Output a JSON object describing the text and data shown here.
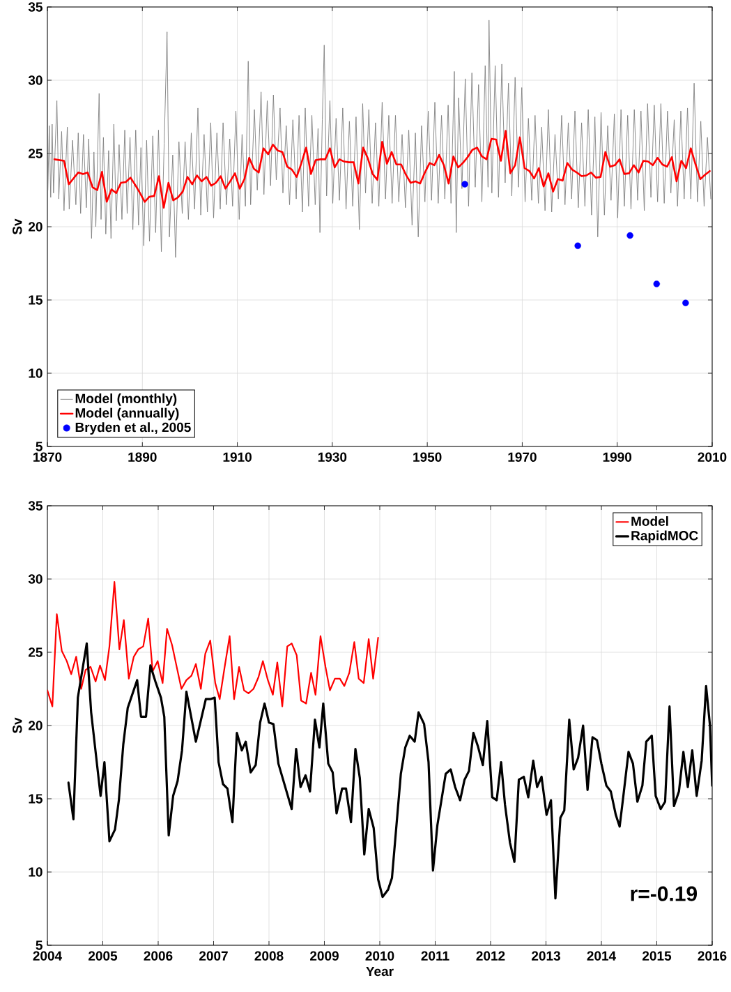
{
  "chart_data": [
    {
      "type": "line",
      "ylabel": "Sv",
      "xlim": [
        1870,
        2010
      ],
      "xticks": [
        1870,
        1890,
        1910,
        1930,
        1950,
        1970,
        1990,
        2010
      ],
      "ylim": [
        5,
        35
      ],
      "yticks": [
        5,
        10,
        15,
        20,
        25,
        30,
        35
      ],
      "grid": true,
      "legend": "bottom left",
      "series": [
        {
          "name": "Model (monthly)",
          "color": "#808080",
          "x": [
            1870.1,
            1870.4,
            1870.7,
            1871.0,
            1871.3,
            1872.0,
            1872.4,
            1873.0,
            1873.5,
            1874.2,
            1874.6,
            1875.3,
            1876.0,
            1876.5,
            1877.0,
            1877.6,
            1878.2,
            1878.7,
            1879.3,
            1879.8,
            1880.2,
            1880.9,
            1881.3,
            1881.8,
            1882.3,
            1882.9,
            1883.4,
            1884.0,
            1884.5,
            1885.1,
            1885.7,
            1886.3,
            1886.8,
            1887.4,
            1888.0,
            1888.6,
            1889.2,
            1889.7,
            1890.3,
            1890.9,
            1891.5,
            1892.2,
            1892.8,
            1893.4,
            1894.0,
            1894.6,
            1895.2,
            1895.7,
            1896.4,
            1897.0,
            1897.7,
            1898.4,
            1899.0,
            1899.7,
            1900.3,
            1901.0,
            1901.7,
            1902.3,
            1903.0,
            1903.7,
            1904.4,
            1905.0,
            1905.7,
            1906.4,
            1907.0,
            1907.7,
            1908.4,
            1909.0,
            1909.7,
            1910.4,
            1911.0,
            1911.7,
            1912.3,
            1912.8,
            1913.6,
            1914.2,
            1915.0,
            1915.6,
            1916.3,
            1917.0,
            1917.6,
            1918.2,
            1919.0,
            1919.6,
            1920.3,
            1921.0,
            1921.7,
            1922.4,
            1923.0,
            1923.7,
            1924.3,
            1925.0,
            1925.7,
            1926.4,
            1927.0,
            1927.4,
            1927.9,
            1928.3,
            1928.8,
            1929.5,
            1930.1,
            1930.8,
            1931.5,
            1932.2,
            1932.9,
            1933.6,
            1934.3,
            1935.0,
            1935.7,
            1936.4,
            1937.0,
            1937.7,
            1938.4,
            1939.1,
            1939.8,
            1940.5,
            1941.2,
            1941.9,
            1942.6,
            1943.3,
            1944.0,
            1944.7,
            1945.4,
            1946.1,
            1946.8,
            1947.5,
            1948.1,
            1948.8,
            1949.5,
            1950.2,
            1950.9,
            1951.6,
            1952.3,
            1953.0,
            1953.7,
            1954.4,
            1955.0,
            1955.7,
            1956.1,
            1956.6,
            1957.3,
            1958.0,
            1958.7,
            1959.4,
            1960.1,
            1960.8,
            1961.5,
            1962.2,
            1962.8,
            1963.0,
            1963.6,
            1964.3,
            1965.0,
            1965.7,
            1966.4,
            1967.1,
            1967.8,
            1968.5,
            1969.2,
            1969.9,
            1970.6,
            1971.3,
            1972.0,
            1972.7,
            1973.4,
            1974.1,
            1974.8,
            1975.5,
            1976.2,
            1976.9,
            1977.6,
            1978.3,
            1979.0,
            1979.7,
            1980.4,
            1981.1,
            1981.8,
            1982.5,
            1983.2,
            1983.9,
            1984.6,
            1985.3,
            1985.9,
            1986.6,
            1987.3,
            1988.0,
            1988.7,
            1989.4,
            1990.1,
            1990.8,
            1991.5,
            1992.2,
            1992.9,
            1993.6,
            1994.3,
            1995.0,
            1995.7,
            1996.4,
            1997.1,
            1997.8,
            1998.5,
            1999.2,
            1999.9,
            2000.6,
            2001.3,
            2002.0,
            2002.7,
            2003.4,
            2004.1,
            2004.8,
            2005.5,
            2006.2,
            2006.9,
            2007.6,
            2008.3,
            2009.0,
            2009.7
          ],
          "values": [
            22.5,
            26.9,
            22.0,
            27.0,
            22.3,
            28.6,
            21.9,
            26.5,
            21.1,
            26.8,
            21.2,
            25.9,
            21.5,
            26.4,
            20.9,
            26.3,
            21.3,
            26.0,
            19.2,
            25.1,
            20.0,
            29.1,
            20.5,
            26.1,
            19.5,
            25.2,
            19.2,
            27.0,
            20.4,
            25.6,
            20.5,
            26.6,
            20.9,
            26.1,
            19.8,
            26.6,
            20.1,
            25.4,
            18.7,
            25.9,
            19.0,
            26.2,
            19.6,
            26.6,
            18.3,
            25.7,
            33.3,
            19.3,
            24.9,
            17.9,
            25.8,
            20.9,
            25.8,
            20.5,
            26.4,
            21.2,
            28.1,
            20.8,
            26.3,
            21.0,
            27.1,
            20.6,
            26.4,
            21.2,
            27.1,
            21.5,
            26.0,
            21.4,
            27.9,
            20.5,
            26.3,
            21.4,
            31.3,
            21.5,
            28.0,
            22.5,
            29.2,
            22.2,
            28.6,
            22.8,
            29.0,
            23.2,
            28.1,
            22.3,
            26.9,
            21.5,
            27.3,
            21.9,
            27.6,
            21.0,
            28.1,
            21.4,
            27.6,
            21.5,
            26.7,
            19.6,
            27.3,
            32.4,
            22.1,
            28.6,
            21.6,
            27.4,
            21.8,
            28.1,
            21.2,
            27.2,
            21.4,
            27.5,
            19.8,
            28.4,
            22.3,
            28.0,
            21.6,
            27.1,
            21.4,
            28.5,
            21.9,
            27.6,
            21.6,
            27.6,
            21.7,
            26.3,
            21.3,
            26.6,
            20.1,
            26.4,
            19.3,
            26.9,
            21.7,
            27.9,
            21.8,
            28.5,
            21.6,
            27.6,
            21.9,
            28.3,
            21.6,
            30.6,
            19.6,
            28.8,
            22.6,
            30.1,
            21.4,
            30.5,
            22.7,
            29.7,
            21.7,
            31.0,
            22.7,
            34.1,
            22.3,
            31.0,
            22.0,
            31.1,
            23.0,
            29.8,
            22.1,
            30.2,
            22.7,
            29.5,
            21.7,
            27.4,
            21.8,
            27.6,
            21.6,
            26.8,
            21.1,
            28.0,
            21.0,
            26.3,
            21.9,
            27.6,
            21.5,
            27.1,
            21.9,
            27.9,
            21.3,
            27.1,
            21.4,
            28.0,
            20.8,
            27.5,
            19.3,
            27.8,
            20.8,
            26.9,
            21.8,
            27.7,
            20.6,
            28.0,
            21.4,
            27.6,
            21.2,
            28.0,
            21.8,
            27.9,
            21.1,
            28.4,
            22.0,
            28.3,
            21.7,
            28.4,
            21.6,
            27.9,
            22.3,
            27.3,
            21.4,
            27.9,
            21.9,
            28.1,
            21.9,
            29.8,
            21.7,
            27.2,
            21.4,
            26.1,
            21.9
          ]
        },
        {
          "name": "Model (annually)",
          "color": "#ff0000",
          "x": [
            1871.5,
            1872.5,
            1873.5,
            1874.5,
            1875.5,
            1876.5,
            1877.5,
            1878.5,
            1879.5,
            1880.5,
            1881.5,
            1882.5,
            1883.5,
            1884.5,
            1885.5,
            1886.5,
            1887.5,
            1888.5,
            1889.5,
            1890.5,
            1891.5,
            1892.5,
            1893.5,
            1894.5,
            1895.5,
            1896.5,
            1897.5,
            1898.5,
            1899.5,
            1900.5,
            1901.5,
            1902.5,
            1903.5,
            1904.5,
            1905.5,
            1906.5,
            1907.5,
            1908.5,
            1909.5,
            1910.5,
            1911.5,
            1912.5,
            1913.5,
            1914.5,
            1915.5,
            1916.5,
            1917.5,
            1918.5,
            1919.5,
            1920.5,
            1921.5,
            1922.5,
            1923.5,
            1924.5,
            1925.5,
            1926.5,
            1927.5,
            1928.5,
            1929.5,
            1930.5,
            1931.5,
            1932.5,
            1933.5,
            1934.5,
            1935.5,
            1936.5,
            1937.5,
            1938.5,
            1939.5,
            1940.5,
            1941.5,
            1942.5,
            1943.5,
            1944.5,
            1945.5,
            1946.5,
            1947.5,
            1948.5,
            1949.5,
            1950.5,
            1951.5,
            1952.5,
            1953.5,
            1954.5,
            1955.5,
            1956.5,
            1957.5,
            1958.5,
            1959.5,
            1960.5,
            1961.5,
            1962.5,
            1963.5,
            1964.5,
            1965.5,
            1966.5,
            1967.5,
            1968.5,
            1969.5,
            1970.5,
            1971.5,
            1972.5,
            1973.5,
            1974.5,
            1975.5,
            1976.5,
            1977.5,
            1978.5,
            1979.5,
            1980.5,
            1981.5,
            1982.5,
            1983.5,
            1984.5,
            1985.5,
            1986.5,
            1987.5,
            1988.5,
            1989.5,
            1990.5,
            1991.5,
            1992.5,
            1993.5,
            1994.5,
            1995.5,
            1996.5,
            1997.5,
            1998.5,
            1999.5,
            2000.5,
            2001.5,
            2002.5,
            2003.5,
            2004.5,
            2005.5,
            2006.5,
            2007.5,
            2008.5,
            2009.5
          ],
          "values": [
            24.6,
            24.55,
            24.5,
            22.9,
            23.3,
            23.7,
            23.6,
            23.7,
            22.7,
            22.5,
            23.75,
            21.7,
            22.55,
            22.3,
            23.0,
            23.05,
            23.35,
            22.85,
            22.3,
            21.7,
            22.05,
            22.1,
            23.45,
            21.3,
            23.0,
            21.8,
            22.0,
            22.4,
            23.4,
            22.9,
            23.5,
            23.1,
            23.4,
            22.8,
            23.0,
            23.45,
            22.6,
            23.1,
            23.65,
            22.6,
            23.25,
            24.7,
            23.95,
            23.7,
            25.35,
            24.95,
            25.6,
            25.2,
            25.1,
            24.1,
            23.9,
            23.4,
            24.35,
            25.4,
            23.6,
            24.55,
            24.6,
            24.6,
            25.35,
            24.05,
            24.6,
            24.45,
            24.4,
            24.4,
            22.95,
            25.4,
            24.65,
            23.6,
            23.2,
            25.8,
            24.3,
            25.1,
            24.25,
            24.25,
            23.55,
            23.0,
            23.1,
            22.95,
            23.7,
            24.35,
            24.2,
            24.9,
            24.2,
            22.95,
            24.8,
            24.05,
            24.35,
            24.75,
            25.25,
            25.4,
            24.8,
            24.6,
            26.0,
            25.95,
            24.5,
            26.55,
            23.65,
            24.2,
            26.1,
            24.0,
            23.8,
            23.3,
            24.0,
            22.75,
            23.65,
            22.4,
            23.25,
            23.15,
            24.35,
            23.9,
            23.7,
            23.45,
            23.5,
            23.7,
            23.35,
            23.4,
            25.1,
            24.1,
            24.2,
            24.6,
            23.6,
            23.65,
            24.2,
            23.7,
            24.5,
            24.45,
            24.2,
            24.7,
            24.25,
            24.1,
            24.75,
            23.1,
            24.5,
            24.0,
            25.35,
            24.25,
            23.25,
            23.55,
            23.8
          ]
        },
        {
          "name": "Bryden et al.,  2005",
          "type": "scatter",
          "color": "#0000ff",
          "x": [
            1957.9,
            1981.7,
            1992.7,
            1998.3,
            2004.4
          ],
          "values": [
            22.9,
            18.7,
            19.4,
            16.1,
            14.8
          ]
        }
      ]
    },
    {
      "type": "line",
      "xlabel": "Year",
      "ylabel": "Sv",
      "xlim": [
        2004,
        2016
      ],
      "xticks": [
        2004,
        2005,
        2006,
        2007,
        2008,
        2009,
        2010,
        2011,
        2012,
        2013,
        2014,
        2015,
        2016
      ],
      "ylim": [
        5,
        35
      ],
      "yticks": [
        5,
        10,
        15,
        20,
        25,
        30,
        35
      ],
      "grid": true,
      "legend": "top right",
      "annotations": [
        "r=-0.19"
      ],
      "series": [
        {
          "name": "Model",
          "color": "#ff0000",
          "x": [
            2004.0,
            2004.09,
            2004.17,
            2004.26,
            2004.35,
            2004.43,
            2004.52,
            2004.61,
            2004.69,
            2004.78,
            2004.87,
            2004.95,
            2005.04,
            2005.12,
            2005.21,
            2005.3,
            2005.38,
            2005.47,
            2005.56,
            2005.64,
            2005.73,
            2005.82,
            2005.9,
            2005.99,
            2006.08,
            2006.16,
            2006.25,
            2006.34,
            2006.42,
            2006.51,
            2006.6,
            2006.68,
            2006.77,
            2006.85,
            2006.94,
            2007.03,
            2007.11,
            2007.2,
            2007.29,
            2007.37,
            2007.46,
            2007.55,
            2007.63,
            2007.72,
            2007.81,
            2007.89,
            2007.98,
            2008.07,
            2008.15,
            2008.24,
            2008.33,
            2008.41,
            2008.5,
            2008.58,
            2008.67,
            2008.76,
            2008.84,
            2008.93,
            2009.02,
            2009.1,
            2009.19,
            2009.28,
            2009.36,
            2009.45,
            2009.54,
            2009.62,
            2009.71,
            2009.8,
            2009.88,
            2009.97
          ],
          "values": [
            22.4,
            21.3,
            27.6,
            25.1,
            24.4,
            23.5,
            24.7,
            22.5,
            23.8,
            24.0,
            23.0,
            24.1,
            23.1,
            25.4,
            29.8,
            25.2,
            27.2,
            23.2,
            24.7,
            25.2,
            25.4,
            27.3,
            23.7,
            24.4,
            22.9,
            26.6,
            25.5,
            23.9,
            22.5,
            23.1,
            23.4,
            24.2,
            22.5,
            24.9,
            25.8,
            22.9,
            21.8,
            24.0,
            26.1,
            21.8,
            24.0,
            22.4,
            22.2,
            22.5,
            23.3,
            24.4,
            23.1,
            22.1,
            24.3,
            21.3,
            25.4,
            25.6,
            24.8,
            21.7,
            21.5,
            23.6,
            22.1,
            26.1,
            24.0,
            22.4,
            23.2,
            23.2,
            22.7,
            23.6,
            25.7,
            23.2,
            22.9,
            25.9,
            23.2,
            26.0
          ]
        },
        {
          "name": "RapidMOC",
          "color": "#000000",
          "x": [
            2004.38,
            2004.47,
            2004.55,
            2004.71,
            2004.79,
            2004.96,
            2005.03,
            2005.12,
            2005.22,
            2005.29,
            2005.37,
            2005.45,
            2005.62,
            2005.69,
            2005.78,
            2005.86,
            2005.95,
            2006.05,
            2006.11,
            2006.19,
            2006.27,
            2006.35,
            2006.43,
            2006.51,
            2006.68,
            2006.86,
            2006.94,
            2007.02,
            2007.09,
            2007.17,
            2007.25,
            2007.34,
            2007.42,
            2007.51,
            2007.58,
            2007.67,
            2007.76,
            2007.84,
            2007.92,
            2008.0,
            2008.08,
            2008.17,
            2008.41,
            2008.49,
            2008.57,
            2008.66,
            2008.74,
            2008.83,
            2008.91,
            2008.98,
            2009.07,
            2009.15,
            2009.22,
            2009.32,
            2009.39,
            2009.48,
            2009.56,
            2009.64,
            2009.72,
            2009.8,
            2009.89,
            2009.97,
            2010.05,
            2010.15,
            2010.22,
            2010.38,
            2010.46,
            2010.54,
            2010.63,
            2010.7,
            2010.8,
            2010.88,
            2010.96,
            2011.04,
            2011.19,
            2011.28,
            2011.36,
            2011.45,
            2011.53,
            2011.61,
            2011.69,
            2011.77,
            2011.86,
            2011.94,
            2012.03,
            2012.11,
            2012.19,
            2012.26,
            2012.35,
            2012.43,
            2012.51,
            2012.6,
            2012.68,
            2012.77,
            2012.84,
            2012.92,
            2013.01,
            2013.09,
            2013.17,
            2013.26,
            2013.33,
            2013.42,
            2013.5,
            2013.58,
            2013.67,
            2013.75,
            2013.84,
            2013.92,
            2014.0,
            2014.09,
            2014.17,
            2014.26,
            2014.33,
            2014.4,
            2014.49,
            2014.57,
            2014.65,
            2014.74,
            2014.81,
            2014.91,
            2014.98,
            2015.07,
            2015.15,
            2015.23,
            2015.31,
            2015.4,
            2015.48,
            2015.56,
            2015.64,
            2015.72,
            2015.81,
            2015.89,
            2015.96,
            2016.0
          ],
          "values": [
            16.1,
            13.6,
            21.9,
            25.6,
            20.9,
            15.2,
            17.5,
            12.1,
            12.9,
            14.9,
            18.7,
            21.2,
            23.1,
            20.6,
            20.6,
            24.1,
            23.0,
            21.9,
            20.6,
            12.5,
            15.2,
            16.2,
            18.3,
            22.3,
            18.9,
            21.8,
            21.8,
            21.9,
            17.5,
            16.0,
            15.7,
            13.4,
            19.5,
            18.3,
            18.9,
            16.8,
            17.3,
            20.2,
            21.5,
            20.2,
            20.1,
            17.4,
            14.3,
            18.4,
            15.8,
            16.6,
            15.5,
            20.4,
            18.5,
            21.5,
            17.4,
            16.8,
            14.0,
            15.7,
            15.7,
            13.4,
            18.4,
            16.4,
            11.2,
            14.3,
            13.0,
            9.5,
            8.3,
            8.8,
            9.6,
            16.7,
            18.5,
            19.3,
            18.9,
            20.9,
            20.1,
            17.5,
            10.1,
            13.2,
            16.7,
            17.0,
            15.8,
            14.9,
            16.3,
            16.9,
            19.5,
            18.6,
            17.3,
            20.3,
            15.1,
            14.9,
            17.5,
            14.6,
            12.0,
            10.7,
            16.3,
            16.5,
            15.1,
            17.6,
            15.8,
            16.5,
            13.9,
            14.9,
            8.2,
            13.7,
            14.2,
            20.4,
            17.0,
            17.8,
            20.0,
            15.6,
            19.2,
            19.0,
            17.4,
            15.9,
            15.5,
            13.9,
            13.1,
            15.3,
            18.2,
            17.4,
            14.8,
            15.9,
            18.9,
            19.3,
            15.2,
            14.3,
            14.8,
            21.3,
            14.5,
            15.5,
            18.2,
            15.8,
            18.3,
            15.2,
            17.6,
            22.7,
            20.0,
            15.9
          ]
        }
      ]
    }
  ]
}
